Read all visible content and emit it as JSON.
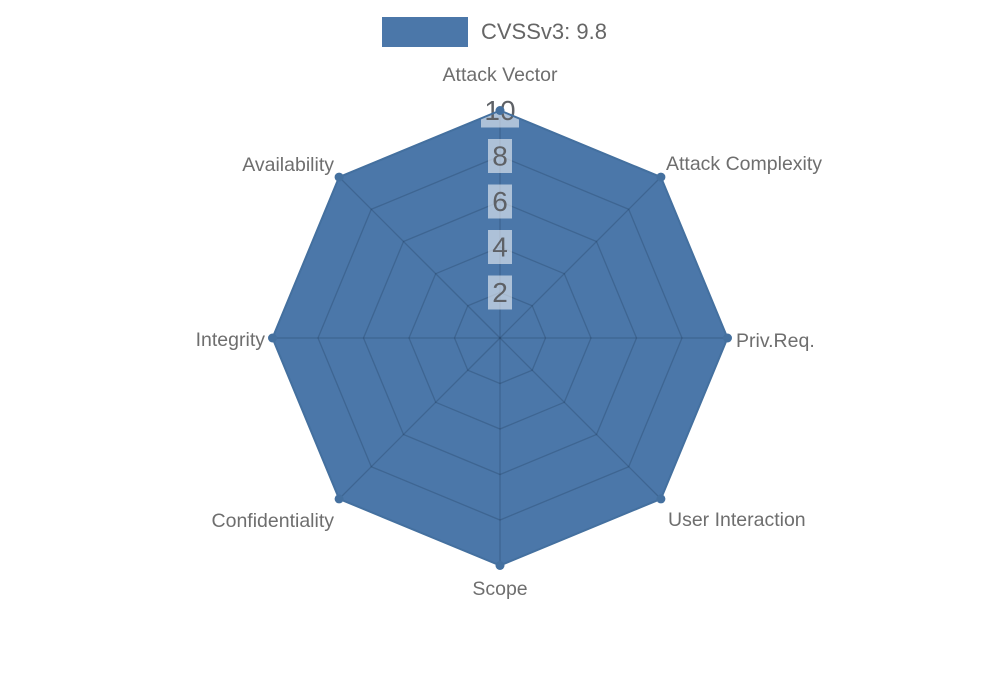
{
  "legend": {
    "label": "CVSSv3: 9.8"
  },
  "colors": {
    "fill": "#4b77a9",
    "outline": "#44709f",
    "grid_line": "rgba(18,40,66,0.22)",
    "tick_box": "rgba(255,255,255,0.55)",
    "tick_text": "#5e6166",
    "label_text": "#6e6e6e",
    "legend_text": "#666666",
    "background": "#ffffff"
  },
  "chart_data": {
    "type": "radar",
    "categories": [
      "Attack Vector",
      "Attack Complexity",
      "Priv.Req.",
      "User Interaction",
      "Scope",
      "Confidentiality",
      "Integrity",
      "Availability"
    ],
    "series": [
      {
        "name": "CVSSv3: 9.8",
        "values": [
          10,
          10,
          10,
          10,
          10,
          10,
          10,
          10
        ]
      }
    ],
    "ticks": [
      2,
      4,
      6,
      8,
      10
    ],
    "ylim": [
      0,
      10
    ],
    "start_axis": "top",
    "direction": "clockwise",
    "grid": true,
    "legend_position": "top-center",
    "title": "",
    "xlabel": "",
    "ylabel": ""
  }
}
